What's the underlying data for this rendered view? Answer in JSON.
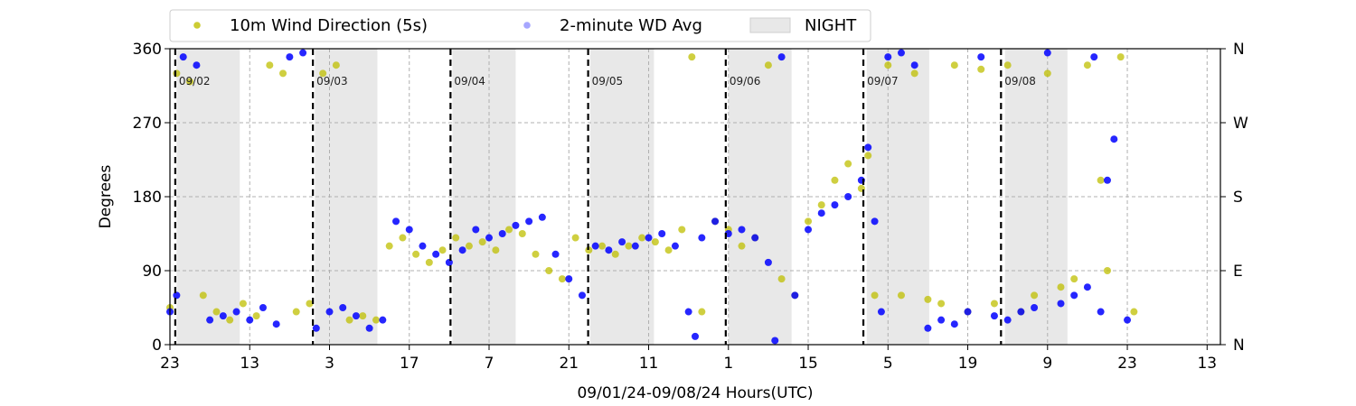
{
  "chart_data": {
    "type": "scatter",
    "xlabel": "09/01/24-09/08/24  Hours(UTC)",
    "ylabel": "Degrees",
    "ylim": [
      0,
      360
    ],
    "xlim_hours": [
      0,
      158
    ],
    "yticks": [
      "0",
      "90",
      "180",
      "270",
      "360"
    ],
    "y2ticks": [
      "N",
      "E",
      "S",
      "W",
      "N"
    ],
    "xtick_labels": [
      "23",
      "13",
      "3",
      "17",
      "7",
      "21",
      "11",
      "1",
      "15",
      "5",
      "19",
      "9",
      "23",
      "13"
    ],
    "xtick_hours": [
      0,
      12,
      24,
      36,
      48,
      60,
      72,
      84,
      96,
      108,
      120,
      132,
      144,
      156
    ],
    "grid": true,
    "legend_position": "top",
    "legend": [
      {
        "label": "10m Wind Direction (5s)",
        "color": "#bfbf00",
        "marker": "circle"
      },
      {
        "label": "2-minute WD Avg",
        "color": "#0000ff",
        "marker": "circle"
      },
      {
        "label": "NIGHT",
        "color": "#e8e8e8",
        "marker": "rect"
      }
    ],
    "day_markers": [
      {
        "label": "09/02",
        "hour": 0.8
      },
      {
        "label": "09/03",
        "hour": 21.5
      },
      {
        "label": "09/04",
        "hour": 42.2
      },
      {
        "label": "09/05",
        "hour": 62.9
      },
      {
        "label": "09/06",
        "hour": 83.6
      },
      {
        "label": "09/07",
        "hour": 104.3
      },
      {
        "label": "09/08",
        "hour": 125.0
      }
    ],
    "night_periods": [
      [
        1,
        10.5
      ],
      [
        21.8,
        31.2
      ],
      [
        42.5,
        52
      ],
      [
        63.2,
        72.8
      ],
      [
        84,
        93.5
      ],
      [
        104.8,
        114.2
      ],
      [
        125.6,
        135
      ]
    ],
    "series": [
      {
        "name": "10m Wind Direction (5s)",
        "color": "#bfbf00",
        "x": [
          0,
          1,
          3,
          5,
          7,
          9,
          11,
          13,
          15,
          17,
          19,
          21,
          23,
          25,
          27,
          29,
          31,
          33,
          35,
          37,
          39,
          41,
          43,
          45,
          47,
          49,
          51,
          53,
          55,
          57,
          59,
          61,
          63,
          65,
          67,
          69,
          71,
          73,
          75,
          77,
          78.5,
          80,
          82,
          84,
          86,
          88,
          90,
          92,
          94,
          96,
          98,
          100,
          102,
          104,
          105,
          106,
          108,
          110,
          112,
          114,
          116,
          118,
          120,
          122,
          124,
          126,
          128,
          130,
          132,
          134,
          136,
          138,
          140,
          141,
          143,
          145
        ],
        "y": [
          45,
          330,
          320,
          60,
          40,
          30,
          50,
          35,
          340,
          330,
          40,
          50,
          330,
          340,
          30,
          35,
          30,
          120,
          130,
          110,
          100,
          115,
          130,
          120,
          125,
          115,
          140,
          135,
          110,
          90,
          80,
          130,
          115,
          120,
          110,
          120,
          130,
          125,
          115,
          140,
          350,
          40,
          150,
          140,
          120,
          130,
          340,
          80,
          60,
          150,
          170,
          200,
          220,
          190,
          230,
          60,
          340,
          60,
          330,
          55,
          50,
          340,
          40,
          335,
          50,
          340,
          40,
          60,
          330,
          70,
          80,
          340,
          200,
          90,
          350,
          40
        ]
      },
      {
        "name": "2-minute WD Avg",
        "color": "#0000ff",
        "x": [
          0,
          1,
          2,
          4,
          6,
          8,
          10,
          12,
          14,
          16,
          18,
          20,
          22,
          24,
          26,
          28,
          30,
          32,
          34,
          36,
          38,
          40,
          42,
          44,
          46,
          48,
          50,
          52,
          54,
          56,
          58,
          60,
          62,
          64,
          66,
          68,
          70,
          72,
          74,
          76,
          78,
          79,
          80,
          82,
          84,
          86,
          88,
          90,
          91,
          92,
          94,
          96,
          98,
          100,
          102,
          104,
          105,
          106,
          107,
          108,
          110,
          112,
          114,
          116,
          118,
          120,
          122,
          124,
          126,
          128,
          130,
          132,
          134,
          136,
          138,
          139,
          140,
          141,
          142,
          144
        ],
        "y": [
          40,
          60,
          350,
          340,
          30,
          35,
          40,
          30,
          45,
          25,
          350,
          355,
          20,
          40,
          45,
          35,
          20,
          30,
          150,
          140,
          120,
          110,
          100,
          115,
          140,
          130,
          135,
          145,
          150,
          155,
          110,
          80,
          60,
          120,
          115,
          125,
          120,
          130,
          135,
          120,
          40,
          10,
          130,
          150,
          135,
          140,
          130,
          100,
          5,
          350,
          60,
          140,
          160,
          170,
          180,
          200,
          240,
          150,
          40,
          350,
          355,
          340,
          20,
          30,
          25,
          40,
          350,
          35,
          30,
          40,
          45,
          355,
          50,
          60,
          70,
          350,
          40,
          200,
          250,
          30
        ]
      }
    ]
  }
}
